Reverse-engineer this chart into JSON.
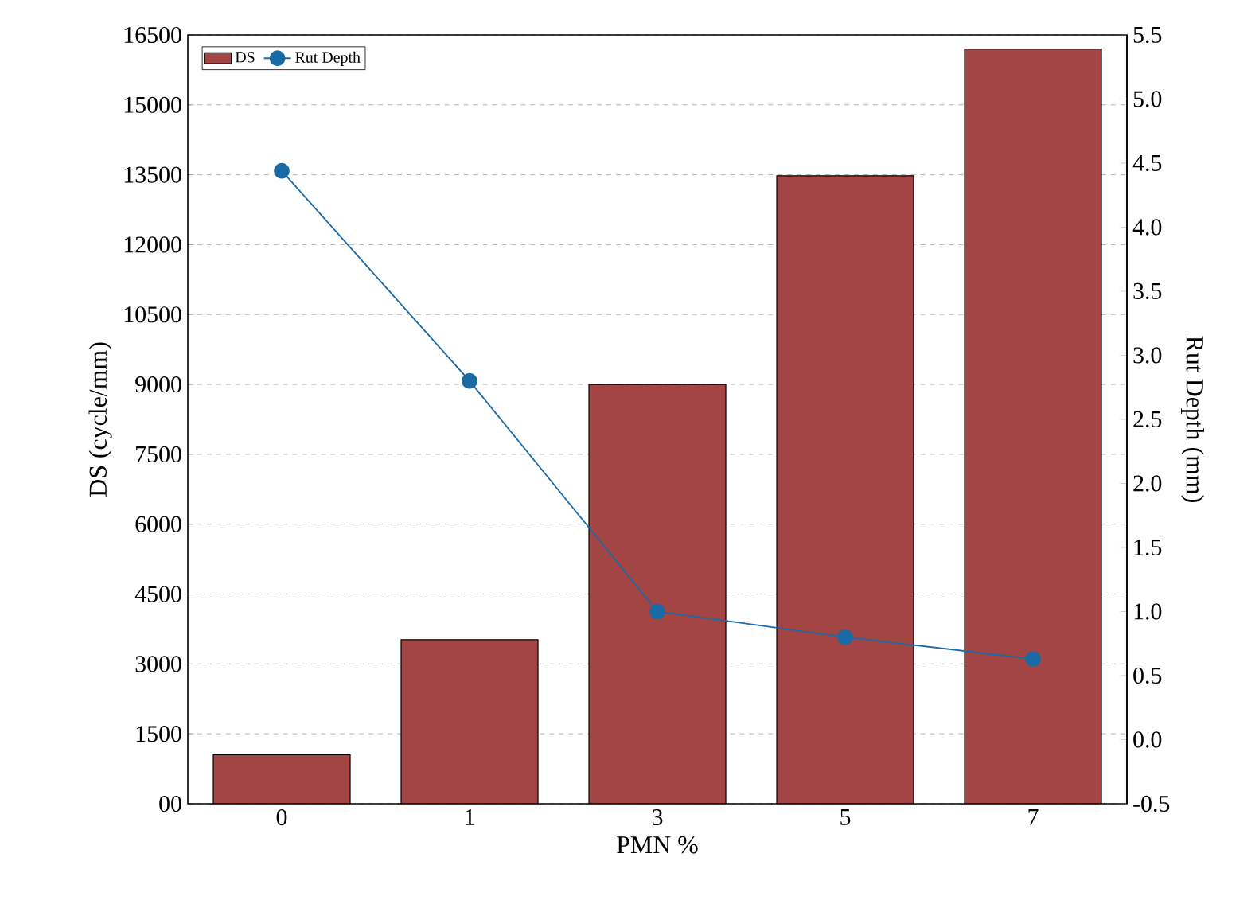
{
  "chart_data": {
    "type": "bar",
    "xlabel": "PMN %",
    "ylabel": "DS (cycle/mm)",
    "y2label": "Rut Depth (mm)",
    "categories": [
      "0",
      "1",
      "3",
      "5",
      "7"
    ],
    "series": [
      {
        "name": "DS",
        "color": "#a44545",
        "values": [
          1050,
          3520,
          9000,
          13480,
          16200
        ]
      },
      {
        "name": "Rut Depth",
        "type": "line",
        "axis": "y2",
        "color": "#1a6aa6",
        "marker": "circle",
        "line_style": "solid",
        "values": [
          4.44,
          2.8,
          1.0,
          0.8,
          0.63
        ]
      }
    ],
    "ylim": [
      0,
      16500
    ],
    "yticks": [
      {
        "value": 0,
        "label": "00"
      },
      1500,
      3000,
      4500,
      6000,
      7500,
      9000,
      10500,
      12000,
      13500,
      15000,
      16500
    ],
    "y2lim": [
      -0.5,
      5.5
    ],
    "y2ticks": [
      {
        "value": -0.5,
        "label": "-0.5"
      },
      {
        "value": 0,
        "label": "0.0"
      },
      0.5,
      {
        "value": 1,
        "label": "1.0"
      },
      1.5,
      {
        "value": 2,
        "label": "2.0"
      },
      2.5,
      {
        "value": 3,
        "label": "3.0"
      },
      3.5,
      {
        "value": 4,
        "label": "4.0"
      },
      4.5,
      {
        "value": 5,
        "label": "5.0"
      },
      5.5
    ],
    "grid": "y",
    "legend": "top left"
  }
}
